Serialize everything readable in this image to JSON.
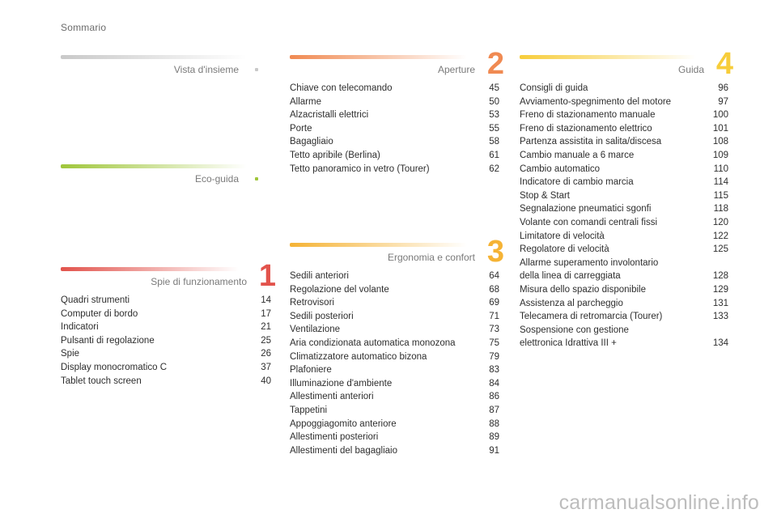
{
  "page_title": "Sommario",
  "sections": {
    "vista": {
      "title": "Vista d'insieme",
      "bar_color": "#c9c9c9",
      "items": []
    },
    "eco": {
      "title": "Eco-guida",
      "bar_color": "#9fc63a",
      "items": []
    },
    "spie": {
      "title": "Spie di funzionamento",
      "number": "1",
      "bar_color": "#e2534c",
      "items": [
        {
          "label": "Quadri strumenti",
          "page": "14"
        },
        {
          "label": "Computer di bordo",
          "page": "17"
        },
        {
          "label": "Indicatori",
          "page": "21"
        },
        {
          "label": "Pulsanti di regolazione",
          "page": "25"
        },
        {
          "label": "Spie",
          "page": "26"
        },
        {
          "label": "Display monocromatico C",
          "page": "37"
        },
        {
          "label": "Tablet touch screen",
          "page": "40"
        }
      ]
    },
    "aperture": {
      "title": "Aperture",
      "number": "2",
      "bar_color": "#f08a52",
      "items": [
        {
          "label": "Chiave con telecomando",
          "page": "45"
        },
        {
          "label": "Allarme",
          "page": "50"
        },
        {
          "label": "Alzacristalli elettrici",
          "page": "53"
        },
        {
          "label": "Porte",
          "page": "55"
        },
        {
          "label": "Bagagliaio",
          "page": "58"
        },
        {
          "label": "Tetto apribile (Berlina)",
          "page": "61"
        },
        {
          "label": "Tetto panoramico in vetro (Tourer)",
          "page": "62"
        }
      ]
    },
    "ergonomia": {
      "title": "Ergonomia e confort",
      "number": "3",
      "bar_color": "#f5b335",
      "items": [
        {
          "label": "Sedili anteriori",
          "page": "64"
        },
        {
          "label": "Regolazione del volante",
          "page": "68"
        },
        {
          "label": "Retrovisori",
          "page": "69"
        },
        {
          "label": "Sedili posteriori",
          "page": "71"
        },
        {
          "label": "Ventilazione",
          "page": "73"
        },
        {
          "label": "Aria condizionata automatica monozona",
          "page": "75"
        },
        {
          "label": "Climatizzatore automatico bizona",
          "page": "79"
        },
        {
          "label": "Plafoniere",
          "page": "83"
        },
        {
          "label": "Illuminazione d'ambiente",
          "page": "84"
        },
        {
          "label": "Allestimenti anteriori",
          "page": "86"
        },
        {
          "label": "Tappetini",
          "page": "87"
        },
        {
          "label": "Appoggiagomito anteriore",
          "page": "88"
        },
        {
          "label": "Allestimenti posteriori",
          "page": "89"
        },
        {
          "label": "Allestimenti del bagagliaio",
          "page": "91"
        }
      ]
    },
    "guida": {
      "title": "Guida",
      "number": "4",
      "bar_color": "#f7cd3a",
      "items": [
        {
          "label": "Consigli di guida",
          "page": "96"
        },
        {
          "label": "Avviamento-spegnimento del motore",
          "page": "97"
        },
        {
          "label": "Freno di stazionamento manuale",
          "page": "100"
        },
        {
          "label": "Freno di stazionamento elettrico",
          "page": "101"
        },
        {
          "label": "Partenza assistita in salita/discesa",
          "page": "108"
        },
        {
          "label": "Cambio manuale a 6 marce",
          "page": "109"
        },
        {
          "label": "Cambio automatico",
          "page": "110"
        },
        {
          "label": "Indicatore di cambio marcia",
          "page": "114"
        },
        {
          "label": "Stop & Start",
          "page": "115"
        },
        {
          "label": "Segnalazione pneumatici sgonfi",
          "page": "118"
        },
        {
          "label": "Volante con comandi centrali fissi",
          "page": "120"
        },
        {
          "label": "Limitatore di velocità",
          "page": "122"
        },
        {
          "label": "Regolatore di velocità",
          "page": "125"
        },
        {
          "label": "Allarme superamento involontario\ndella linea di carreggiata",
          "page": "128"
        },
        {
          "label": "Misura dello spazio disponibile",
          "page": "129"
        },
        {
          "label": "Assistenza al parcheggio",
          "page": "131"
        },
        {
          "label": "Telecamera di retromarcia (Tourer)",
          "page": "133"
        },
        {
          "label": "Sospensione con gestione\nelettronica Idrattiva III +",
          "page": "134"
        }
      ]
    }
  },
  "watermark": "carmanualsonline.info"
}
